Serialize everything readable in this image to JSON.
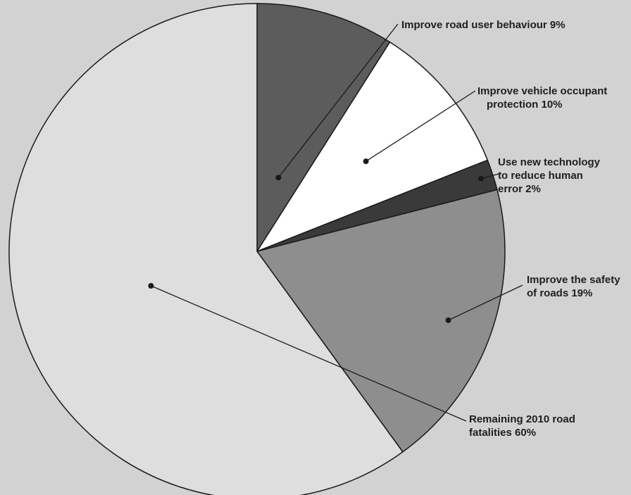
{
  "chart_data": {
    "type": "pie",
    "title": "",
    "start_angle_deg": 0,
    "direction": "clockwise",
    "slices": [
      {
        "label": "Improve road user behaviour",
        "value": 9,
        "value_label": "9%",
        "color": "#5c5c5c",
        "label_lines": [
          "Improve road user behaviour 9%"
        ]
      },
      {
        "label": "Improve vehicle occupant protection",
        "value": 10,
        "value_label": "10%",
        "color": "#ffffff",
        "label_lines": [
          "Improve vehicle occupant",
          "protection 10%"
        ]
      },
      {
        "label": "Use new technology to reduce human error",
        "value": 2,
        "value_label": "2%",
        "color": "#3a3a3a",
        "label_lines": [
          "Use new technology",
          "to reduce human",
          "error 2%"
        ]
      },
      {
        "label": "Improve the safety of roads",
        "value": 19,
        "value_label": "19%",
        "color": "#8e8e8e",
        "label_lines": [
          "Improve the safety",
          "of roads 19%"
        ]
      },
      {
        "label": "Remaining 2010 road fatalities",
        "value": 60,
        "value_label": "60%",
        "color": "#dedede",
        "label_lines": [
          "Remaining 2010 road",
          "fatalities 60%"
        ]
      }
    ]
  }
}
